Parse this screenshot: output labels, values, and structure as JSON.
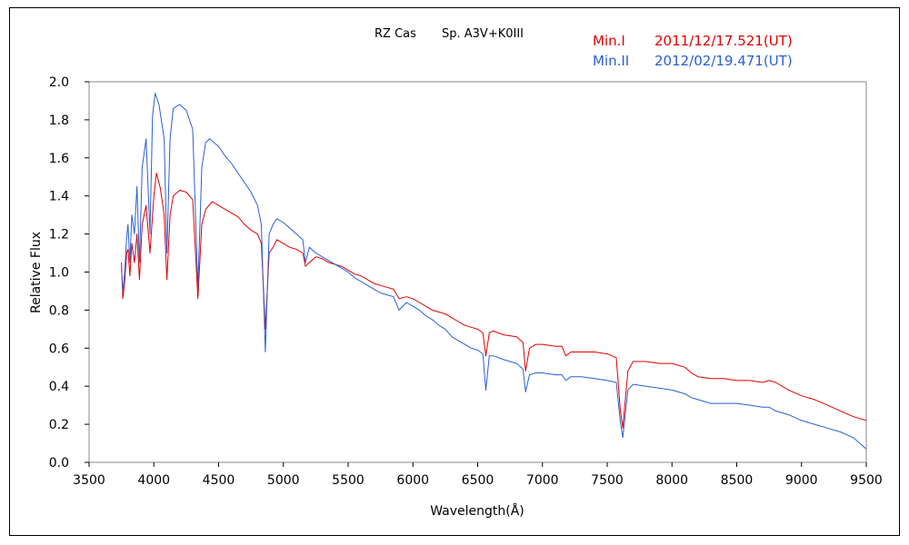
{
  "chart_data": {
    "type": "line",
    "title_object": "RZ Cas",
    "title_spectrum": "Sp. A3V+K0III",
    "xlabel": "Wavelength(Å)",
    "ylabel": "Relative Flux",
    "xlim": [
      3500,
      9500
    ],
    "ylim": [
      0,
      2.0
    ],
    "xticks": [
      3500,
      4000,
      4500,
      5000,
      5500,
      6000,
      6500,
      7000,
      7500,
      8000,
      8500,
      9000,
      9500
    ],
    "yticks": [
      "0.0",
      "0.2",
      "0.4",
      "0.6",
      "0.8",
      "1.0",
      "1.2",
      "1.4",
      "1.6",
      "1.8",
      "2.0"
    ],
    "grid": false,
    "legend_position": "top-right",
    "series": [
      {
        "name": "Min.I",
        "date": "2011/12/17.521(UT)",
        "color": "#e00000",
        "points": [
          [
            3750,
            1.05
          ],
          [
            3760,
            0.86
          ],
          [
            3775,
            0.95
          ],
          [
            3790,
            1.1
          ],
          [
            3800,
            1.12
          ],
          [
            3815,
            0.98
          ],
          [
            3830,
            1.15
          ],
          [
            3850,
            1.05
          ],
          [
            3870,
            1.2
          ],
          [
            3889,
            0.96
          ],
          [
            3910,
            1.25
          ],
          [
            3940,
            1.35
          ],
          [
            3970,
            1.1
          ],
          [
            4000,
            1.4
          ],
          [
            4020,
            1.52
          ],
          [
            4050,
            1.44
          ],
          [
            4080,
            1.3
          ],
          [
            4101,
            0.96
          ],
          [
            4125,
            1.3
          ],
          [
            4150,
            1.4
          ],
          [
            4200,
            1.43
          ],
          [
            4250,
            1.42
          ],
          [
            4300,
            1.38
          ],
          [
            4340,
            0.86
          ],
          [
            4370,
            1.25
          ],
          [
            4400,
            1.33
          ],
          [
            4450,
            1.37
          ],
          [
            4500,
            1.35
          ],
          [
            4550,
            1.33
          ],
          [
            4600,
            1.31
          ],
          [
            4650,
            1.29
          ],
          [
            4700,
            1.25
          ],
          [
            4750,
            1.22
          ],
          [
            4800,
            1.2
          ],
          [
            4830,
            1.15
          ],
          [
            4861,
            0.7
          ],
          [
            4890,
            1.1
          ],
          [
            4920,
            1.13
          ],
          [
            4950,
            1.17
          ],
          [
            5000,
            1.15
          ],
          [
            5050,
            1.13
          ],
          [
            5100,
            1.12
          ],
          [
            5150,
            1.1
          ],
          [
            5170,
            1.03
          ],
          [
            5200,
            1.05
          ],
          [
            5250,
            1.08
          ],
          [
            5300,
            1.07
          ],
          [
            5350,
            1.05
          ],
          [
            5400,
            1.04
          ],
          [
            5450,
            1.03
          ],
          [
            5500,
            1.01
          ],
          [
            5550,
            0.99
          ],
          [
            5600,
            0.98
          ],
          [
            5650,
            0.96
          ],
          [
            5700,
            0.94
          ],
          [
            5750,
            0.93
          ],
          [
            5800,
            0.92
          ],
          [
            5850,
            0.91
          ],
          [
            5893,
            0.86
          ],
          [
            5950,
            0.87
          ],
          [
            6000,
            0.86
          ],
          [
            6050,
            0.84
          ],
          [
            6100,
            0.82
          ],
          [
            6150,
            0.8
          ],
          [
            6200,
            0.79
          ],
          [
            6250,
            0.78
          ],
          [
            6300,
            0.76
          ],
          [
            6350,
            0.74
          ],
          [
            6400,
            0.72
          ],
          [
            6450,
            0.71
          ],
          [
            6500,
            0.7
          ],
          [
            6540,
            0.68
          ],
          [
            6563,
            0.56
          ],
          [
            6590,
            0.68
          ],
          [
            6620,
            0.69
          ],
          [
            6700,
            0.67
          ],
          [
            6800,
            0.66
          ],
          [
            6850,
            0.63
          ],
          [
            6870,
            0.48
          ],
          [
            6900,
            0.6
          ],
          [
            6950,
            0.62
          ],
          [
            7000,
            0.62
          ],
          [
            7100,
            0.61
          ],
          [
            7150,
            0.61
          ],
          [
            7180,
            0.56
          ],
          [
            7220,
            0.58
          ],
          [
            7300,
            0.58
          ],
          [
            7400,
            0.58
          ],
          [
            7500,
            0.57
          ],
          [
            7570,
            0.55
          ],
          [
            7600,
            0.28
          ],
          [
            7620,
            0.18
          ],
          [
            7660,
            0.48
          ],
          [
            7700,
            0.53
          ],
          [
            7800,
            0.53
          ],
          [
            7900,
            0.52
          ],
          [
            8000,
            0.52
          ],
          [
            8100,
            0.5
          ],
          [
            8150,
            0.47
          ],
          [
            8200,
            0.45
          ],
          [
            8300,
            0.44
          ],
          [
            8400,
            0.44
          ],
          [
            8500,
            0.43
          ],
          [
            8600,
            0.43
          ],
          [
            8700,
            0.42
          ],
          [
            8750,
            0.43
          ],
          [
            8800,
            0.42
          ],
          [
            8900,
            0.38
          ],
          [
            9000,
            0.35
          ],
          [
            9100,
            0.33
          ],
          [
            9200,
            0.3
          ],
          [
            9300,
            0.27
          ],
          [
            9400,
            0.24
          ],
          [
            9450,
            0.23
          ],
          [
            9500,
            0.22
          ]
        ]
      },
      {
        "name": "Min.II",
        "date": "2012/02/19.471(UT)",
        "color": "#2a5fd6",
        "points": [
          [
            3750,
            1.02
          ],
          [
            3760,
            0.9
          ],
          [
            3775,
            1.0
          ],
          [
            3790,
            1.18
          ],
          [
            3800,
            1.25
          ],
          [
            3815,
            1.05
          ],
          [
            3830,
            1.3
          ],
          [
            3850,
            1.2
          ],
          [
            3870,
            1.45
          ],
          [
            3889,
            1.05
          ],
          [
            3910,
            1.55
          ],
          [
            3940,
            1.7
          ],
          [
            3970,
            1.2
          ],
          [
            3990,
            1.82
          ],
          [
            4010,
            1.94
          ],
          [
            4040,
            1.88
          ],
          [
            4080,
            1.7
          ],
          [
            4101,
            1.1
          ],
          [
            4125,
            1.7
          ],
          [
            4150,
            1.86
          ],
          [
            4200,
            1.88
          ],
          [
            4250,
            1.85
          ],
          [
            4300,
            1.75
          ],
          [
            4340,
            0.92
          ],
          [
            4370,
            1.55
          ],
          [
            4400,
            1.68
          ],
          [
            4430,
            1.7
          ],
          [
            4500,
            1.66
          ],
          [
            4550,
            1.61
          ],
          [
            4600,
            1.57
          ],
          [
            4650,
            1.52
          ],
          [
            4700,
            1.47
          ],
          [
            4750,
            1.42
          ],
          [
            4800,
            1.35
          ],
          [
            4830,
            1.25
          ],
          [
            4861,
            0.58
          ],
          [
            4890,
            1.2
          ],
          [
            4920,
            1.25
          ],
          [
            4950,
            1.28
          ],
          [
            5000,
            1.26
          ],
          [
            5050,
            1.23
          ],
          [
            5100,
            1.2
          ],
          [
            5150,
            1.17
          ],
          [
            5170,
            1.05
          ],
          [
            5200,
            1.13
          ],
          [
            5250,
            1.1
          ],
          [
            5300,
            1.08
          ],
          [
            5350,
            1.06
          ],
          [
            5400,
            1.04
          ],
          [
            5450,
            1.02
          ],
          [
            5500,
            1.0
          ],
          [
            5550,
            0.97
          ],
          [
            5600,
            0.95
          ],
          [
            5650,
            0.93
          ],
          [
            5700,
            0.91
          ],
          [
            5750,
            0.89
          ],
          [
            5800,
            0.88
          ],
          [
            5850,
            0.87
          ],
          [
            5893,
            0.8
          ],
          [
            5950,
            0.84
          ],
          [
            6000,
            0.82
          ],
          [
            6050,
            0.8
          ],
          [
            6100,
            0.77
          ],
          [
            6150,
            0.75
          ],
          [
            6200,
            0.72
          ],
          [
            6250,
            0.7
          ],
          [
            6300,
            0.66
          ],
          [
            6350,
            0.64
          ],
          [
            6400,
            0.62
          ],
          [
            6450,
            0.6
          ],
          [
            6500,
            0.59
          ],
          [
            6540,
            0.57
          ],
          [
            6563,
            0.38
          ],
          [
            6590,
            0.56
          ],
          [
            6620,
            0.56
          ],
          [
            6700,
            0.54
          ],
          [
            6800,
            0.52
          ],
          [
            6850,
            0.49
          ],
          [
            6870,
            0.37
          ],
          [
            6900,
            0.46
          ],
          [
            6950,
            0.47
          ],
          [
            7000,
            0.47
          ],
          [
            7100,
            0.46
          ],
          [
            7150,
            0.46
          ],
          [
            7180,
            0.43
          ],
          [
            7220,
            0.45
          ],
          [
            7300,
            0.45
          ],
          [
            7400,
            0.44
          ],
          [
            7500,
            0.43
          ],
          [
            7570,
            0.42
          ],
          [
            7600,
            0.22
          ],
          [
            7620,
            0.13
          ],
          [
            7660,
            0.38
          ],
          [
            7700,
            0.41
          ],
          [
            7800,
            0.4
          ],
          [
            7900,
            0.39
          ],
          [
            8000,
            0.38
          ],
          [
            8100,
            0.36
          ],
          [
            8150,
            0.34
          ],
          [
            8200,
            0.33
          ],
          [
            8300,
            0.31
          ],
          [
            8400,
            0.31
          ],
          [
            8500,
            0.31
          ],
          [
            8600,
            0.3
          ],
          [
            8700,
            0.29
          ],
          [
            8750,
            0.29
          ],
          [
            8800,
            0.27
          ],
          [
            8900,
            0.25
          ],
          [
            9000,
            0.22
          ],
          [
            9100,
            0.2
          ],
          [
            9200,
            0.18
          ],
          [
            9300,
            0.16
          ],
          [
            9400,
            0.13
          ],
          [
            9450,
            0.1
          ],
          [
            9500,
            0.07
          ]
        ]
      }
    ]
  }
}
